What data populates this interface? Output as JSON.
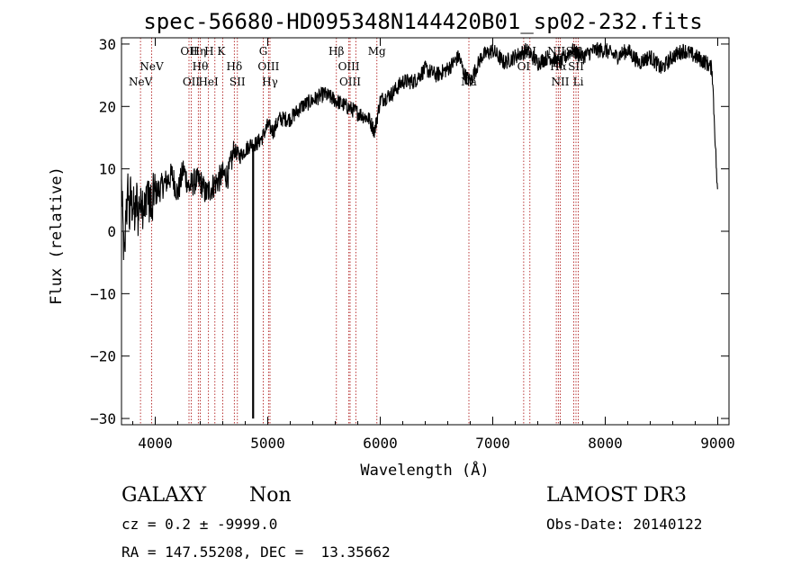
{
  "chart_data": {
    "type": "line",
    "title": "spec-56680-HD095348N144420B01_sp02-232.fits",
    "xlabel": "Wavelength (Å)",
    "ylabel": "Flux (relative)",
    "xlim": [
      3700,
      9100
    ],
    "ylim": [
      -31,
      31
    ],
    "x_ticks": [
      4000,
      5000,
      6000,
      7000,
      8000,
      9000
    ],
    "y_ticks": [
      -30,
      -20,
      -10,
      0,
      10,
      20,
      30
    ],
    "grid": false,
    "series": [
      {
        "color": "#000000",
        "x": [
          3700,
          3710,
          3720,
          3730,
          3740,
          3750,
          3760,
          3770,
          3780,
          3790,
          3800,
          3810,
          3820,
          3830,
          3840,
          3850,
          3860,
          3870,
          3880,
          3890,
          3900,
          3910,
          3920,
          3930,
          3940,
          3950,
          3960,
          3970,
          3980,
          3990,
          4000,
          4050,
          4100,
          4150,
          4200,
          4250,
          4300,
          4350,
          4400,
          4450,
          4500,
          4550,
          4600,
          4650,
          4700,
          4750,
          4800,
          4850,
          4900,
          4950,
          5000,
          5050,
          5100,
          5200,
          5300,
          5400,
          5500,
          5600,
          5700,
          5800,
          5900,
          5950,
          6000,
          6100,
          6200,
          6300,
          6400,
          6500,
          6600,
          6700,
          6750,
          6800,
          6850,
          6900,
          7000,
          7100,
          7200,
          7300,
          7400,
          7500,
          7600,
          7700,
          7800,
          7900,
          8000,
          8100,
          8200,
          8300,
          8400,
          8500,
          8600,
          8700,
          8800,
          8900,
          8950,
          9000
        ],
        "values": [
          7,
          2,
          -3,
          -5,
          5,
          3,
          8,
          1,
          6,
          4,
          5,
          3,
          2,
          4,
          6,
          1,
          6,
          3,
          7,
          4,
          5,
          2,
          6,
          8,
          5,
          3,
          7,
          1,
          5,
          7,
          6,
          7,
          8,
          9,
          6,
          10,
          7,
          8,
          8,
          6,
          7,
          8,
          9,
          9,
          13,
          12,
          13,
          14,
          14,
          15,
          17,
          16,
          18,
          18,
          20,
          21,
          22,
          21,
          20,
          19,
          18,
          16,
          21,
          22,
          24,
          24,
          26,
          25,
          26,
          28,
          25,
          24,
          26,
          28,
          29,
          27,
          28,
          29,
          27,
          28,
          27,
          29,
          28,
          29,
          29,
          28,
          29,
          27,
          28,
          26,
          28,
          29,
          28,
          27,
          26,
          5
        ]
      }
    ],
    "feature_line": {
      "x": 4870,
      "y_from": -30,
      "y_to": 14
    },
    "lines": [
      {
        "x": 3869,
        "labels": [
          "NeV"
        ],
        "tier": 2
      },
      {
        "x": 3968,
        "labels": [
          "NeV"
        ],
        "tier": 1
      },
      {
        "x": 4300,
        "labels": [
          "OII"
        ],
        "tier": 0
      },
      {
        "x": 4320,
        "labels": [
          "OII"
        ],
        "tier": 2
      },
      {
        "x": 4383,
        "labels": [
          "Hη"
        ],
        "tier": 0
      },
      {
        "x": 4400,
        "labels": [
          "Hθ"
        ],
        "tier": 1
      },
      {
        "x": 4473,
        "labels": [
          "HeI"
        ],
        "tier": 2
      },
      {
        "x": 4530,
        "labels": [
          "H",
          "K"
        ],
        "tier": 0
      },
      {
        "x": 4600,
        "labels": [],
        "tier": 0
      },
      {
        "x": 4703,
        "labels": [
          "Hδ"
        ],
        "tier": 1
      },
      {
        "x": 4730,
        "labels": [
          "SII"
        ],
        "tier": 2
      },
      {
        "x": 4960,
        "labels": [
          "G"
        ],
        "tier": 0
      },
      {
        "x": 5007,
        "labels": [
          "OIII"
        ],
        "tier": 1
      },
      {
        "x": 5020,
        "labels": [
          "Hγ"
        ],
        "tier": 2
      },
      {
        "x": 5610,
        "labels": [
          "Hβ"
        ],
        "tier": 0
      },
      {
        "x": 5721,
        "labels": [
          "OIII"
        ],
        "tier": 1
      },
      {
        "x": 5732,
        "labels": [
          "OIII"
        ],
        "tier": 2
      },
      {
        "x": 5783,
        "labels": [],
        "tier": 0
      },
      {
        "x": 5970,
        "labels": [
          "Mg"
        ],
        "tier": 0
      },
      {
        "x": 6788,
        "labels": [
          "Na"
        ],
        "tier": 2
      },
      {
        "x": 7275,
        "labels": [
          "OI"
        ],
        "tier": 1
      },
      {
        "x": 7330,
        "labels": [
          "OI"
        ],
        "tier": 0
      },
      {
        "x": 7565,
        "labels": [
          "NII"
        ],
        "tier": 0
      },
      {
        "x": 7583,
        "labels": [
          "Hα"
        ],
        "tier": 1
      },
      {
        "x": 7600,
        "labels": [
          "NII"
        ],
        "tier": 2
      },
      {
        "x": 7720,
        "labels": [
          "SII"
        ],
        "tier": 0
      },
      {
        "x": 7740,
        "labels": [
          "SII"
        ],
        "tier": 1
      },
      {
        "x": 7760,
        "labels": [
          "Li"
        ],
        "tier": 2
      }
    ]
  },
  "info": {
    "class_text": "GALAXY",
    "subclass_text": "Non",
    "survey": "LAMOST DR3",
    "cz": "cz = 0.2 ± -9999.0",
    "obs_date": "Obs-Date: 20140122",
    "radec": "RA = 147.55208, DEC =  13.35662"
  }
}
